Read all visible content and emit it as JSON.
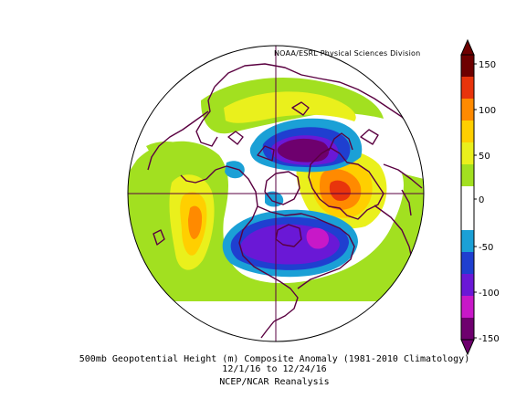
{
  "credit": "NOAA/ESRL Physical Sciences Division",
  "caption": {
    "line1": "500mb Geopotential Height (m) Composite Anomaly (1981-2010 Climatology)",
    "line2": "12/1/16  to 12/24/16",
    "line3": "NCEP/NCAR Reanalysis"
  },
  "colorbar": {
    "ticks": [
      "150",
      "100",
      "50",
      "0",
      "-50",
      "-100",
      "-150"
    ],
    "colors": [
      "#6e0000",
      "#e8340c",
      "#ff8a00",
      "#ffcf00",
      "#eaf01c",
      "#a2e020",
      "#ffffff",
      "#ffffff",
      "#1ba0d6",
      "#1f3fd0",
      "#6a18d6",
      "#c818c8",
      "#6e006e"
    ]
  },
  "map": {
    "projection": "north-polar-stereographic",
    "land_outline_color": "#5a0040",
    "anomaly_colors": {
      "strong_negative": "#6e006e",
      "negative_magenta": "#c818c8",
      "negative_purple": "#6a18d6",
      "negative_blue": "#1f3fd0",
      "weak_negative": "#1ba0d6",
      "weak_positive": "#a2e020",
      "moderate_positive": "#eaf01c",
      "positive_yellow": "#ffcf00",
      "positive_orange": "#ff8a00",
      "strong_positive": "#e8340c"
    }
  }
}
